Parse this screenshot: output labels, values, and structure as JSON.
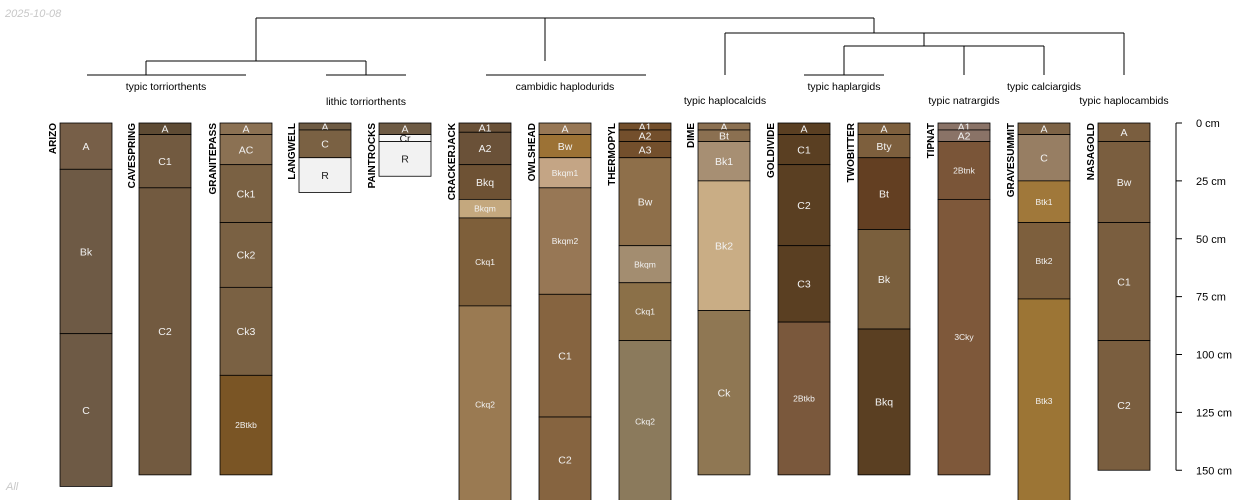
{
  "meta": {
    "date": "2025-10-08",
    "footer": "All"
  },
  "taxa": [
    "typic torriorthents",
    "lithic torriorthents",
    "cambidic haplodurids",
    "typic haplocalcids",
    "typic haplargids",
    "typic natrargids",
    "typic calciargids",
    "typic haplocambids"
  ],
  "depth_axis": {
    "unit": "cm",
    "ticks": [
      0,
      25,
      50,
      75,
      100,
      125,
      150
    ]
  },
  "profiles": [
    {
      "id": "ARIZO",
      "bottom": 157,
      "horizons": [
        {
          "name": "A",
          "top": 0,
          "bottom": 20,
          "color": "#775F48"
        },
        {
          "name": "Bk",
          "top": 20,
          "bottom": 91,
          "color": "#6E5A45"
        },
        {
          "name": "C",
          "top": 91,
          "bottom": 157,
          "color": "#6E5A45"
        }
      ]
    },
    {
      "id": "CAVESPRING",
      "bottom": 152,
      "horizons": [
        {
          "name": "A",
          "top": 0,
          "bottom": 5,
          "color": "#5E4B34"
        },
        {
          "name": "C1",
          "top": 5,
          "bottom": 28,
          "color": "#725A40"
        },
        {
          "name": "C2",
          "top": 28,
          "bottom": 152,
          "color": "#725A40"
        }
      ]
    },
    {
      "id": "GRANITEPASS",
      "bottom": 152,
      "horizons": [
        {
          "name": "A",
          "top": 0,
          "bottom": 5,
          "color": "#8B7153"
        },
        {
          "name": "AC",
          "top": 5,
          "bottom": 18,
          "color": "#8B7153"
        },
        {
          "name": "Ck1",
          "top": 18,
          "bottom": 43,
          "color": "#7A6143"
        },
        {
          "name": "Ck2",
          "top": 43,
          "bottom": 71,
          "color": "#7A6143"
        },
        {
          "name": "Ck3",
          "top": 71,
          "bottom": 109,
          "color": "#7A6143"
        },
        {
          "name": "2Btkb",
          "top": 109,
          "bottom": 152,
          "color": "#7A5525"
        }
      ]
    },
    {
      "id": "LANGWELL",
      "bottom": 30,
      "horizons": [
        {
          "name": "A",
          "top": 0,
          "bottom": 3,
          "color": "#6E5B44"
        },
        {
          "name": "C",
          "top": 3,
          "bottom": 15,
          "color": "#7A6143"
        },
        {
          "name": "R",
          "top": 15,
          "bottom": 30,
          "color": "#F2F2F2"
        }
      ]
    },
    {
      "id": "PAINTROCKS",
      "bottom": 23,
      "horizons": [
        {
          "name": "A",
          "top": 0,
          "bottom": 5,
          "color": "#6E5B44"
        },
        {
          "name": "Cr",
          "top": 5,
          "bottom": 8,
          "color": "#F7F7F7"
        },
        {
          "name": "R",
          "top": 8,
          "bottom": 23,
          "color": "#F2F2F2"
        }
      ]
    },
    {
      "id": "CRACKERJACK",
      "bottom": 164,
      "horizons": [
        {
          "name": "A1",
          "top": 0,
          "bottom": 4,
          "color": "#6A5138"
        },
        {
          "name": "A2",
          "top": 4,
          "bottom": 18,
          "color": "#6A5138"
        },
        {
          "name": "Bkq",
          "top": 18,
          "bottom": 33,
          "color": "#6E5234"
        },
        {
          "name": "Bkqm",
          "top": 33,
          "bottom": 41,
          "color": "#C4A87E"
        },
        {
          "name": "Ckq1",
          "top": 41,
          "bottom": 79,
          "color": "#7E5F3A"
        },
        {
          "name": "Ckq2",
          "top": 79,
          "bottom": 164,
          "color": "#9A7A52"
        }
      ]
    },
    {
      "id": "OWLSHEAD",
      "bottom": 164,
      "horizons": [
        {
          "name": "A",
          "top": 0,
          "bottom": 5,
          "color": "#977755"
        },
        {
          "name": "Bw",
          "top": 5,
          "bottom": 15,
          "color": "#9C7235"
        },
        {
          "name": "Bkqm1",
          "top": 15,
          "bottom": 28,
          "color": "#C4A585"
        },
        {
          "name": "Bkqm2",
          "top": 28,
          "bottom": 74,
          "color": "#977755"
        },
        {
          "name": "C1",
          "top": 74,
          "bottom": 127,
          "color": "#866440"
        },
        {
          "name": "C2",
          "top": 127,
          "bottom": 164,
          "color": "#866440"
        }
      ]
    },
    {
      "id": "THERMOPYL",
      "bottom": 164,
      "horizons": [
        {
          "name": "A1",
          "top": 0,
          "bottom": 3,
          "color": "#734F2C"
        },
        {
          "name": "A2",
          "top": 3,
          "bottom": 8,
          "color": "#734F2C"
        },
        {
          "name": "A3",
          "top": 8,
          "bottom": 15,
          "color": "#734F2C"
        },
        {
          "name": "Bw",
          "top": 15,
          "bottom": 53,
          "color": "#8E6F4A"
        },
        {
          "name": "Bkqm",
          "top": 53,
          "bottom": 69,
          "color": "#A38D70"
        },
        {
          "name": "Ckq1",
          "top": 69,
          "bottom": 94,
          "color": "#8B7048"
        },
        {
          "name": "Ckq2",
          "top": 94,
          "bottom": 164,
          "color": "#8B7A5C"
        }
      ]
    },
    {
      "id": "DIME",
      "bottom": 152,
      "horizons": [
        {
          "name": "A",
          "top": 0,
          "bottom": 3,
          "color": "#8B7051"
        },
        {
          "name": "Bt",
          "top": 3,
          "bottom": 8,
          "color": "#8B7051"
        },
        {
          "name": "Bk1",
          "top": 8,
          "bottom": 25,
          "color": "#A78F73"
        },
        {
          "name": "Bk2",
          "top": 25,
          "bottom": 81,
          "color": "#C9AD85"
        },
        {
          "name": "Ck",
          "top": 81,
          "bottom": 152,
          "color": "#8F7753"
        }
      ]
    },
    {
      "id": "GOLDIVIDE",
      "bottom": 152,
      "horizons": [
        {
          "name": "A",
          "top": 0,
          "bottom": 5,
          "color": "#5A3F22"
        },
        {
          "name": "C1",
          "top": 5,
          "bottom": 18,
          "color": "#5A3F22"
        },
        {
          "name": "C2",
          "top": 18,
          "bottom": 53,
          "color": "#5A3F22"
        },
        {
          "name": "C3",
          "top": 53,
          "bottom": 86,
          "color": "#5A3F22"
        },
        {
          "name": "2Btkb",
          "top": 86,
          "bottom": 152,
          "color": "#7A583C"
        }
      ]
    },
    {
      "id": "TWOBITTER",
      "bottom": 152,
      "horizons": [
        {
          "name": "A",
          "top": 0,
          "bottom": 5,
          "color": "#7D5F3D"
        },
        {
          "name": "Bty",
          "top": 5,
          "bottom": 15,
          "color": "#7D5F3D"
        },
        {
          "name": "Bt",
          "top": 15,
          "bottom": 46,
          "color": "#633F22"
        },
        {
          "name": "Bk",
          "top": 46,
          "bottom": 89,
          "color": "#7A5F3D"
        },
        {
          "name": "Bkq",
          "top": 89,
          "bottom": 152,
          "color": "#5A3F22"
        }
      ]
    },
    {
      "id": "TIPNAT",
      "bottom": 152,
      "horizons": [
        {
          "name": "A1",
          "top": 0,
          "bottom": 3,
          "color": "#8A7367"
        },
        {
          "name": "A2",
          "top": 3,
          "bottom": 8,
          "color": "#8A7367"
        },
        {
          "name": "2Btnk",
          "top": 8,
          "bottom": 33,
          "color": "#7A5538"
        },
        {
          "name": "3Cky",
          "top": 33,
          "bottom": 152,
          "color": "#7E583A"
        }
      ]
    },
    {
      "id": "GRAVESUMMIT",
      "bottom": 164,
      "horizons": [
        {
          "name": "A",
          "top": 0,
          "bottom": 5,
          "color": "#7D6346"
        },
        {
          "name": "C",
          "top": 5,
          "bottom": 25,
          "color": "#977E63"
        },
        {
          "name": "Btk1",
          "top": 25,
          "bottom": 43,
          "color": "#A0783A"
        },
        {
          "name": "Btk2",
          "top": 43,
          "bottom": 76,
          "color": "#7D5F3D"
        },
        {
          "name": "Btk3",
          "top": 76,
          "bottom": 164,
          "color": "#9C7535"
        }
      ]
    },
    {
      "id": "NASAGOLD",
      "bottom": 150,
      "horizons": [
        {
          "name": "A",
          "top": 0,
          "bottom": 8,
          "color": "#7A5E3F"
        },
        {
          "name": "Bw",
          "top": 8,
          "bottom": 43,
          "color": "#7A5E3F"
        },
        {
          "name": "C1",
          "top": 43,
          "bottom": 94,
          "color": "#7A5E3F"
        },
        {
          "name": "C2",
          "top": 94,
          "bottom": 150,
          "color": "#7A5E3F"
        }
      ]
    }
  ]
}
